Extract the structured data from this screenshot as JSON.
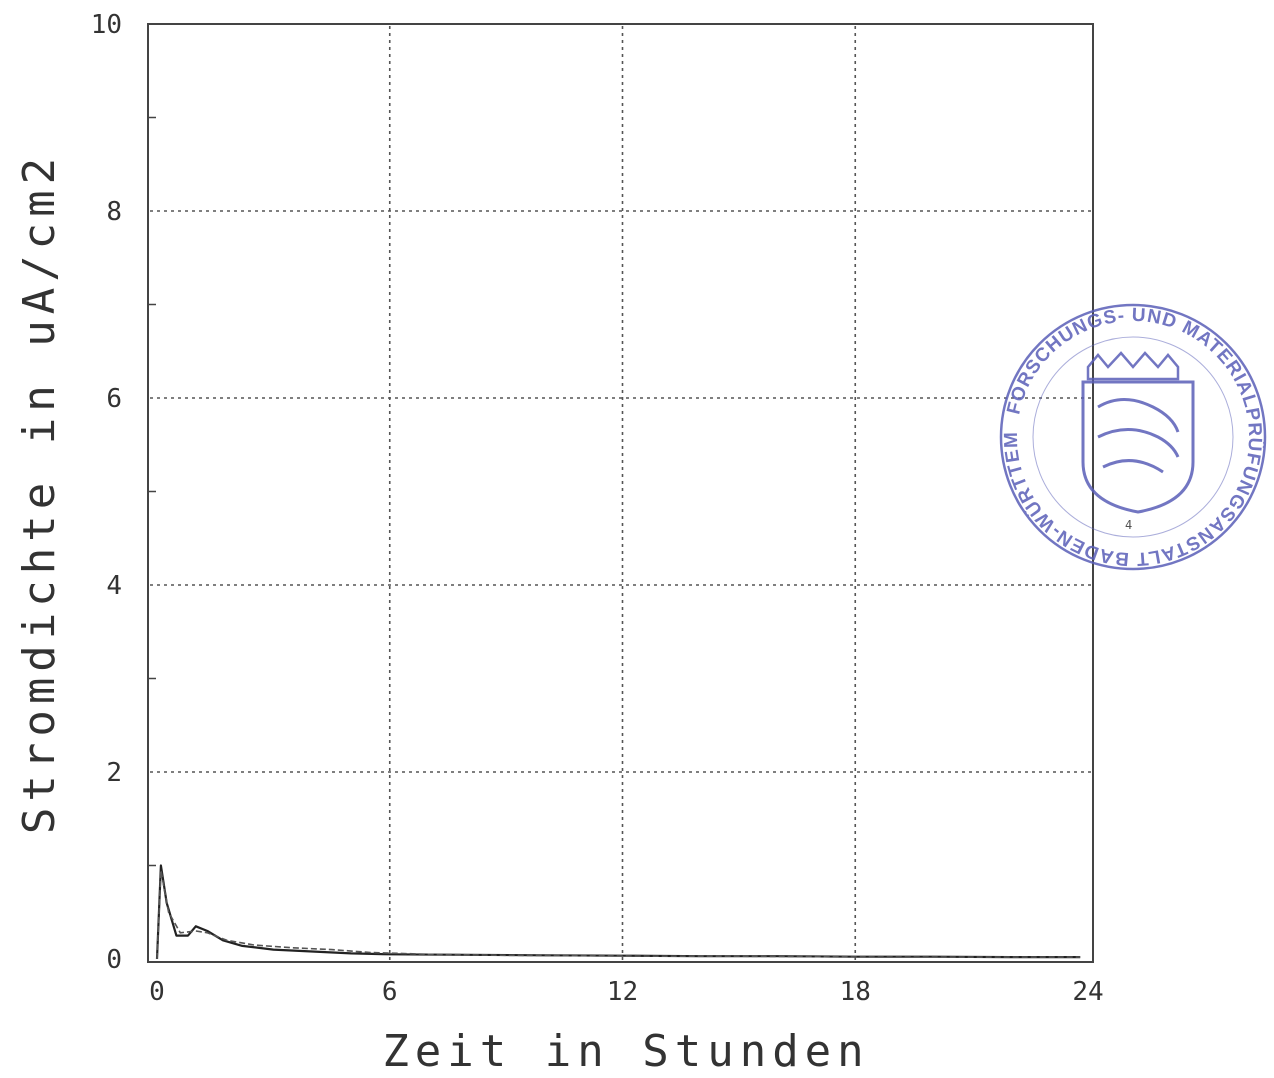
{
  "chart_data": {
    "type": "line",
    "xlabel": "Zeit in Stunden",
    "ylabel": "Stromdichte in uA/cm2",
    "xlim": [
      0,
      24
    ],
    "ylim": [
      0,
      10
    ],
    "x_ticks": [
      "0",
      "6",
      "12",
      "18",
      "24"
    ],
    "y_ticks": [
      "0",
      "2",
      "4",
      "6",
      "8",
      "10"
    ],
    "grid": true,
    "series": [
      {
        "x": [
          0,
          0.1,
          0.25,
          0.5,
          0.8,
          1.0,
          1.3,
          1.7,
          2.2,
          3.0,
          4.0,
          5.0,
          6.0,
          8.0,
          10.0,
          12.0,
          14.0,
          16.0,
          18.0,
          20.0,
          22.0,
          23.8
        ],
        "values": [
          0.0,
          1.0,
          0.6,
          0.25,
          0.25,
          0.35,
          0.3,
          0.2,
          0.14,
          0.1,
          0.08,
          0.06,
          0.05,
          0.045,
          0.04,
          0.035,
          0.03,
          0.03,
          0.025,
          0.025,
          0.02,
          0.02
        ]
      },
      {
        "x": [
          0,
          0.1,
          0.3,
          0.6,
          1.0,
          1.3,
          1.8,
          2.5,
          3.5,
          4.5,
          5.5,
          7.0,
          9.0,
          11.0,
          13.0,
          15.0,
          17.0,
          19.0,
          21.0,
          23.8
        ],
        "values": [
          0.0,
          0.95,
          0.5,
          0.28,
          0.3,
          0.28,
          0.2,
          0.15,
          0.12,
          0.1,
          0.07,
          0.05,
          0.04,
          0.035,
          0.03,
          0.03,
          0.025,
          0.02,
          0.02,
          0.02
        ]
      }
    ]
  },
  "stamp": {
    "text": "FORSCHUNGS- UND MATERIALPRÜFUNGSANSTALT BADEN-WÜRTTEMBERG",
    "color": "#5a5fb8"
  }
}
